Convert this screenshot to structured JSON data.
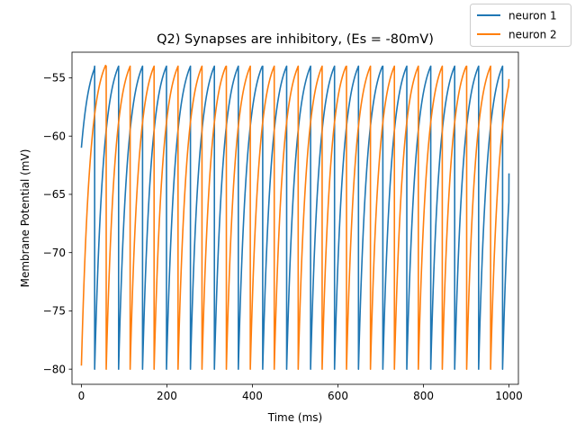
{
  "chart_data": {
    "type": "line",
    "title": "Q2) Synapses are inhibitory,  (Es = -80mV)",
    "xlabel": "Time (ms)",
    "ylabel": "Membrane Potential (mV)",
    "xlim": [
      -22,
      1022
    ],
    "ylim": [
      -81.3,
      -52.8
    ],
    "xticks": [
      0,
      200,
      400,
      600,
      800,
      1000
    ],
    "yticks": [
      -80,
      -75,
      -70,
      -65,
      -60,
      -55
    ],
    "xtick_labels": [
      "0",
      "200",
      "400",
      "600",
      "800",
      "1000"
    ],
    "ytick_labels": [
      "−80",
      "−75",
      "−70",
      "−65",
      "−60",
      "−55"
    ],
    "grid": false,
    "legend_placement": "top-right (outside axes)",
    "series": [
      {
        "name": "neuron 1",
        "color": "#1f77b4",
        "v_reset": -80,
        "v_threshold": -54,
        "time_constant_ms": 20,
        "spike_times_ms": [
          31.0,
          87.0,
          143.0,
          199.0,
          255.0,
          311.0,
          367.0,
          424.0,
          480.0,
          536.0,
          592.0,
          648.0,
          705.0,
          761.0,
          817.0,
          873.0,
          929.0,
          985.0
        ],
        "start": [
          0,
          -61
        ],
        "end": [
          1000,
          -63.2
        ]
      },
      {
        "name": "neuron 2",
        "color": "#ff7f0e",
        "v_reset": -80,
        "v_threshold": -54,
        "time_constant_ms": 20,
        "spike_times_ms": [
          58.0,
          114.0,
          170.0,
          226.0,
          282.0,
          339.0,
          395.0,
          451.0,
          507.0,
          563.0,
          620.0,
          676.0,
          732.0,
          788.0,
          844.0,
          901.0,
          957.0
        ],
        "start": [
          0,
          -79.7
        ],
        "end": [
          1000,
          -55.1
        ]
      }
    ]
  }
}
